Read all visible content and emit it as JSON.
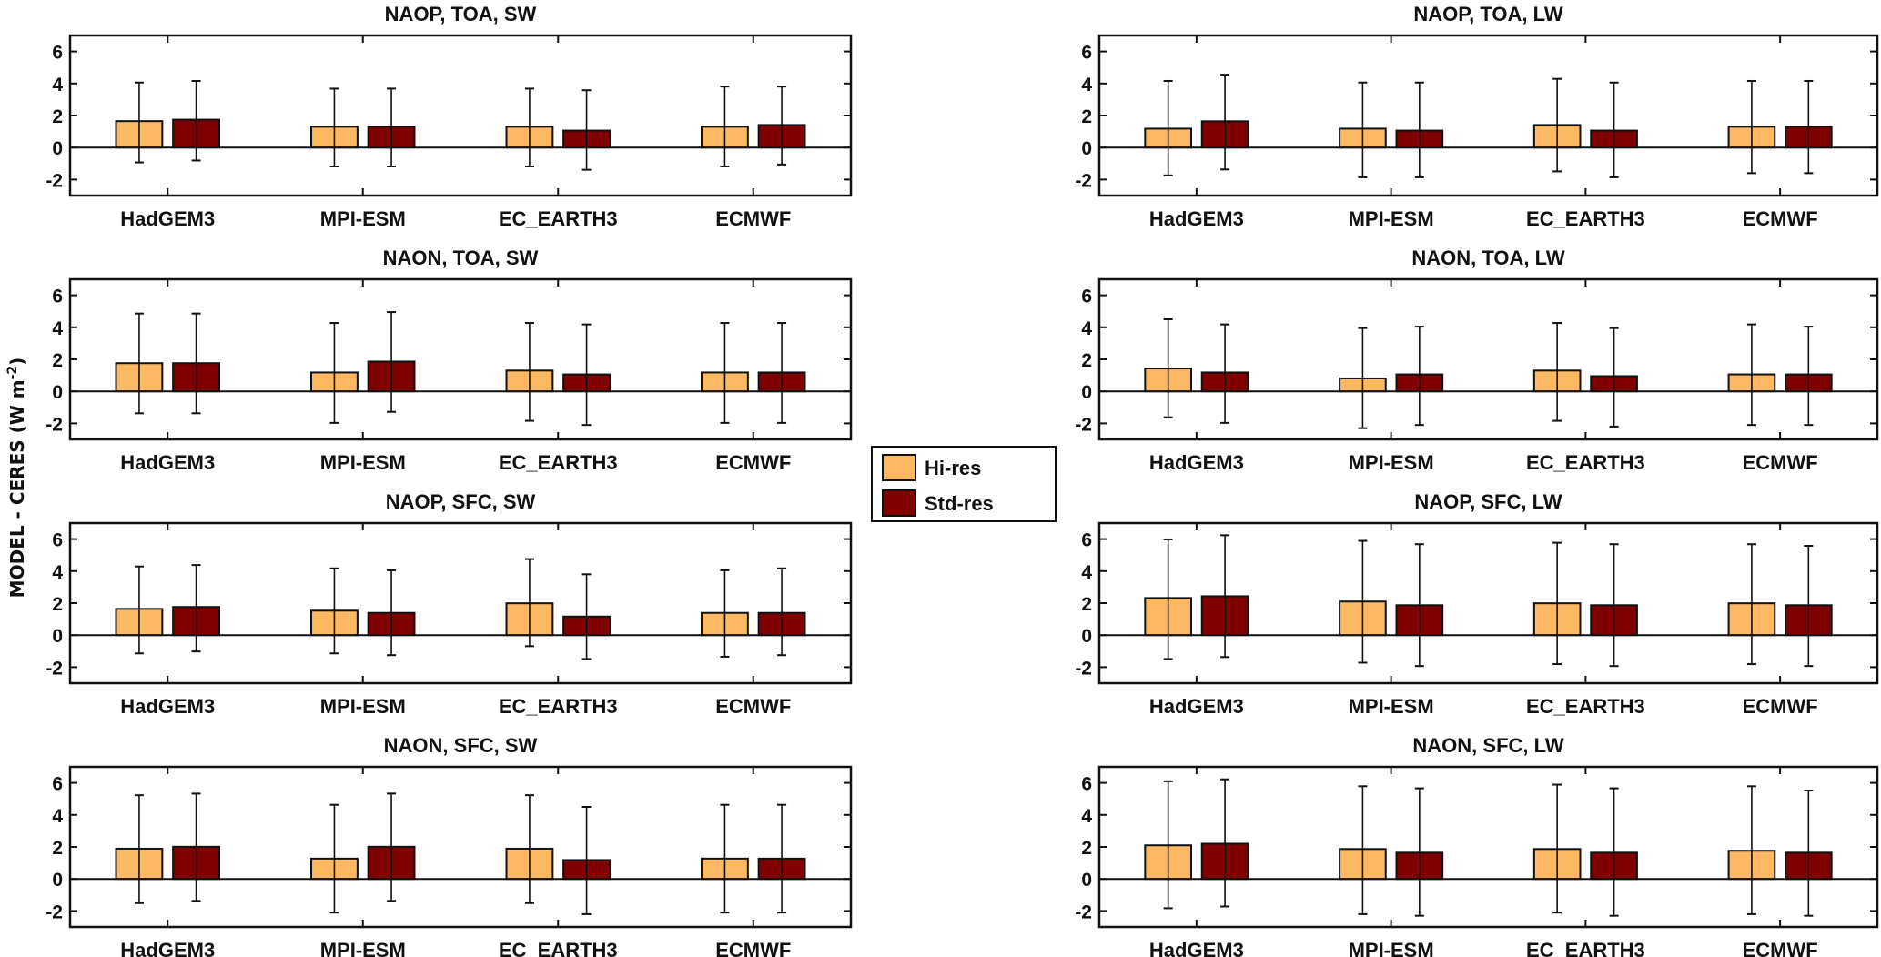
{
  "figure": {
    "ylabel": "MODEL - CERES (W m",
    "ylabel_sup": "-2",
    "ylabel_close": ")",
    "legend": [
      {
        "label": "Hi-res",
        "color": "#FDB863"
      },
      {
        "label": "Std-res",
        "color": "#7F0000"
      }
    ]
  },
  "chart_data": [
    {
      "type": "bar",
      "title": "NAOP, TOA, SW",
      "categories": [
        "HadGEM3",
        "MPI-ESM",
        "EC_EARTH3",
        "ECMWF"
      ],
      "ylim": [
        -3,
        7
      ],
      "yticks": [
        -2,
        0,
        2,
        4,
        6
      ],
      "series": [
        {
          "name": "Hi-res",
          "values": [
            1.65,
            1.3,
            1.3,
            1.3
          ],
          "err_low": [
            -0.93,
            -1.18,
            -1.18,
            -1.18
          ],
          "err_high": [
            4.06,
            3.68,
            3.68,
            3.81
          ]
        },
        {
          "name": "Std-res",
          "values": [
            1.74,
            1.3,
            1.06,
            1.41
          ],
          "err_low": [
            -0.81,
            -1.18,
            -1.39,
            -1.06
          ],
          "err_high": [
            4.16,
            3.68,
            3.58,
            3.81
          ]
        }
      ]
    },
    {
      "type": "bar",
      "title": "NAOP, TOA, LW",
      "categories": [
        "HadGEM3",
        "MPI-ESM",
        "EC_EARTH3",
        "ECMWF"
      ],
      "ylim": [
        -3,
        7
      ],
      "yticks": [
        -2,
        0,
        2,
        4,
        6
      ],
      "series": [
        {
          "name": "Hi-res",
          "values": [
            1.18,
            1.18,
            1.41,
            1.3
          ],
          "err_low": [
            -1.74,
            -1.86,
            -1.49,
            -1.6
          ],
          "err_high": [
            4.16,
            4.06,
            4.29,
            4.16
          ]
        },
        {
          "name": "Std-res",
          "values": [
            1.64,
            1.06,
            1.06,
            1.3
          ],
          "err_low": [
            -1.37,
            -1.86,
            -1.86,
            -1.6
          ],
          "err_high": [
            4.55,
            4.06,
            4.06,
            4.16
          ]
        }
      ]
    },
    {
      "type": "bar",
      "title": "NAON, TOA, SW",
      "categories": [
        "HadGEM3",
        "MPI-ESM",
        "EC_EARTH3",
        "ECMWF"
      ],
      "ylim": [
        -3,
        7
      ],
      "yticks": [
        -2,
        0,
        2,
        4,
        6
      ],
      "series": [
        {
          "name": "Hi-res",
          "values": [
            1.76,
            1.18,
            1.3,
            1.18
          ],
          "err_low": [
            -1.37,
            -1.97,
            -1.84,
            -1.97
          ],
          "err_high": [
            4.86,
            4.27,
            4.27,
            4.27
          ]
        },
        {
          "name": "Std-res",
          "values": [
            1.76,
            1.86,
            1.06,
            1.18
          ],
          "err_low": [
            -1.37,
            -1.28,
            -2.1,
            -1.97
          ],
          "err_high": [
            4.86,
            4.95,
            4.18,
            4.27
          ]
        }
      ]
    },
    {
      "type": "bar",
      "title": "NAON, TOA, LW",
      "categories": [
        "HadGEM3",
        "MPI-ESM",
        "EC_EARTH3",
        "ECMWF"
      ],
      "ylim": [
        -3,
        7
      ],
      "yticks": [
        -2,
        0,
        2,
        4,
        6
      ],
      "series": [
        {
          "name": "Hi-res",
          "values": [
            1.43,
            0.81,
            1.3,
            1.06
          ],
          "err_low": [
            -1.62,
            -2.3,
            -1.84,
            -2.1
          ],
          "err_high": [
            4.5,
            3.95,
            4.27,
            4.18
          ]
        },
        {
          "name": "Std-res",
          "values": [
            1.18,
            1.06,
            0.95,
            1.06
          ],
          "err_low": [
            -1.97,
            -2.1,
            -2.2,
            -2.1
          ],
          "err_high": [
            4.18,
            4.04,
            3.95,
            4.04
          ]
        }
      ]
    },
    {
      "type": "bar",
      "title": "NAOP, SFC, SW",
      "categories": [
        "HadGEM3",
        "MPI-ESM",
        "EC_EARTH3",
        "ECMWF"
      ],
      "ylim": [
        -3,
        7
      ],
      "yticks": [
        -2,
        0,
        2,
        4,
        6
      ],
      "series": [
        {
          "name": "Hi-res",
          "values": [
            1.64,
            1.53,
            1.99,
            1.39
          ],
          "err_low": [
            -1.14,
            -1.14,
            -0.69,
            -1.35
          ],
          "err_high": [
            4.29,
            4.17,
            4.75,
            4.05
          ]
        },
        {
          "name": "Std-res",
          "values": [
            1.76,
            1.39,
            1.16,
            1.39
          ],
          "err_low": [
            -1.02,
            -1.25,
            -1.49,
            -1.25
          ],
          "err_high": [
            4.38,
            4.05,
            3.8,
            4.17
          ]
        }
      ]
    },
    {
      "type": "bar",
      "title": "NAOP, SFC, LW",
      "categories": [
        "HadGEM3",
        "MPI-ESM",
        "EC_EARTH3",
        "ECMWF"
      ],
      "ylim": [
        -3,
        7
      ],
      "yticks": [
        -2,
        0,
        2,
        4,
        6
      ],
      "series": [
        {
          "name": "Hi-res",
          "values": [
            2.32,
            2.1,
            1.99,
            1.99
          ],
          "err_low": [
            -1.49,
            -1.72,
            -1.81,
            -1.81
          ],
          "err_high": [
            5.98,
            5.89,
            5.77,
            5.68
          ]
        },
        {
          "name": "Std-res",
          "values": [
            2.43,
            1.87,
            1.87,
            1.87
          ],
          "err_low": [
            -1.37,
            -1.93,
            -1.93,
            -1.93
          ],
          "err_high": [
            6.24,
            5.68,
            5.68,
            5.58
          ]
        }
      ]
    },
    {
      "type": "bar",
      "title": "NAON, SFC, SW",
      "categories": [
        "HadGEM3",
        "MPI-ESM",
        "EC_EARTH3",
        "ECMWF"
      ],
      "ylim": [
        -3,
        7
      ],
      "yticks": [
        -2,
        0,
        2,
        4,
        6
      ],
      "series": [
        {
          "name": "Hi-res",
          "values": [
            1.89,
            1.27,
            1.89,
            1.27
          ],
          "err_low": [
            -1.51,
            -2.1,
            -1.51,
            -2.1
          ],
          "err_high": [
            5.23,
            4.63,
            5.23,
            4.63
          ]
        },
        {
          "name": "Std-res",
          "values": [
            2.01,
            2.01,
            1.18,
            1.27
          ],
          "err_low": [
            -1.37,
            -1.37,
            -2.2,
            -2.1
          ],
          "err_high": [
            5.33,
            5.33,
            4.5,
            4.63
          ]
        }
      ]
    },
    {
      "type": "bar",
      "title": "NAON, SFC, LW",
      "categories": [
        "HadGEM3",
        "MPI-ESM",
        "EC_EARTH3",
        "ECMWF"
      ],
      "ylim": [
        -3,
        7
      ],
      "yticks": [
        -2,
        0,
        2,
        4,
        6
      ],
      "series": [
        {
          "name": "Hi-res",
          "values": [
            2.1,
            1.87,
            1.87,
            1.76
          ],
          "err_low": [
            -1.83,
            -2.2,
            -2.1,
            -2.2
          ],
          "err_high": [
            6.1,
            5.79,
            5.89,
            5.79
          ]
        },
        {
          "name": "Std-res",
          "values": [
            2.2,
            1.64,
            1.64,
            1.64
          ],
          "err_low": [
            -1.72,
            -2.3,
            -2.3,
            -2.3
          ],
          "err_high": [
            6.22,
            5.66,
            5.66,
            5.52
          ]
        }
      ]
    }
  ]
}
